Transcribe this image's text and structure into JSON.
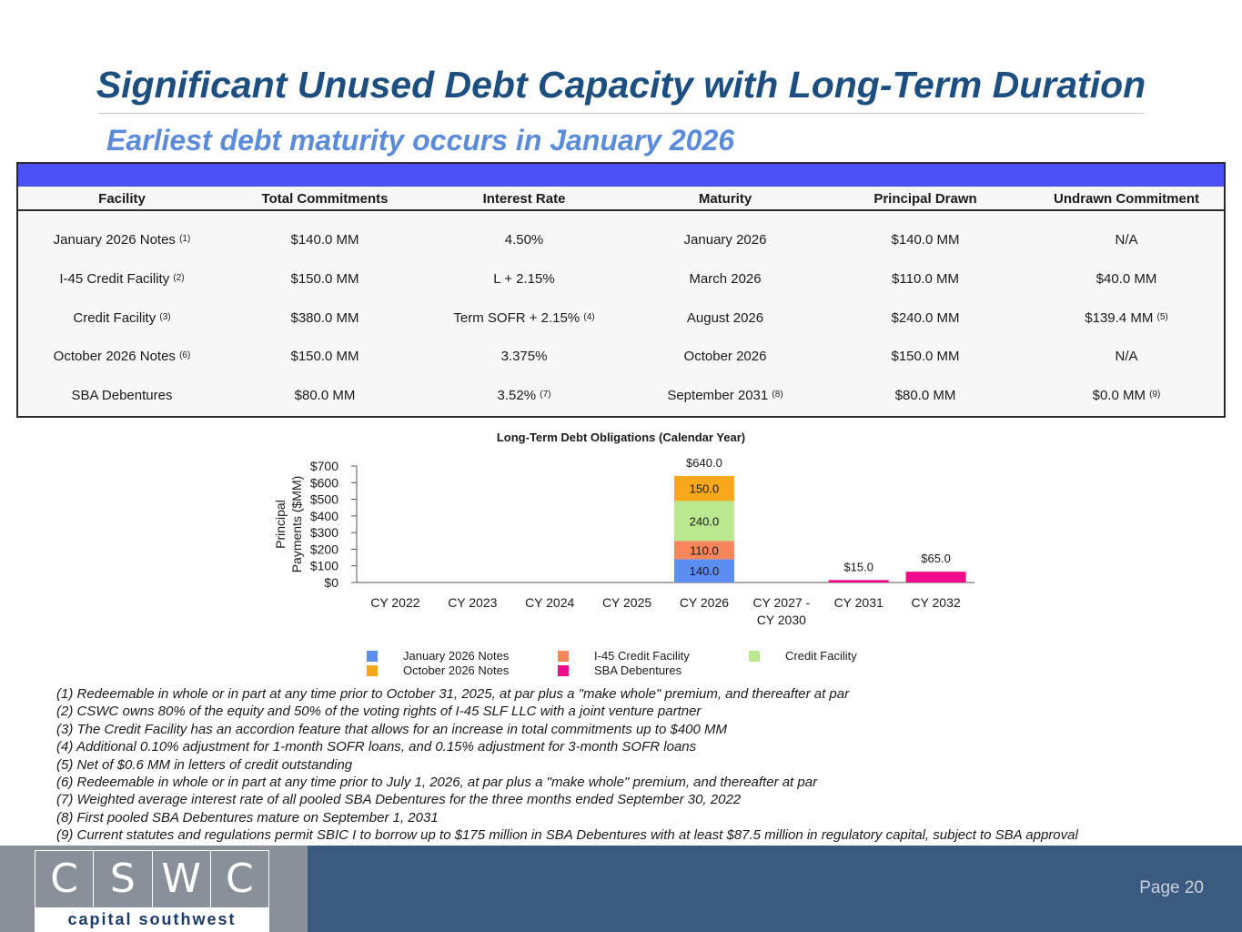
{
  "title": "Significant Unused Debt Capacity with Long-Term Duration",
  "subtitle": "Earliest debt maturity occurs in January 2026",
  "table": {
    "headers": [
      "Facility",
      "Total Commitments",
      "Interest Rate",
      "Maturity",
      "Principal Drawn",
      "Undrawn Commitment"
    ],
    "rows": [
      [
        {
          "t": "January 2026 Notes",
          "s": "(1)"
        },
        {
          "t": "$140.0 MM",
          "s": ""
        },
        {
          "t": "4.50%",
          "s": ""
        },
        {
          "t": "January 2026",
          "s": ""
        },
        {
          "t": "$140.0 MM",
          "s": ""
        },
        {
          "t": "N/A",
          "s": ""
        }
      ],
      [
        {
          "t": "I-45 Credit Facility",
          "s": "(2)"
        },
        {
          "t": "$150.0 MM",
          "s": ""
        },
        {
          "t": "L + 2.15%",
          "s": ""
        },
        {
          "t": "March 2026",
          "s": ""
        },
        {
          "t": "$110.0 MM",
          "s": ""
        },
        {
          "t": "$40.0 MM",
          "s": ""
        }
      ],
      [
        {
          "t": "Credit Facility",
          "s": "(3)"
        },
        {
          "t": "$380.0 MM",
          "s": ""
        },
        {
          "t": "Term SOFR + 2.15%",
          "s": "(4)"
        },
        {
          "t": "August 2026",
          "s": ""
        },
        {
          "t": "$240.0 MM",
          "s": ""
        },
        {
          "t": "$139.4 MM",
          "s": "(5)"
        }
      ],
      [
        {
          "t": "October 2026 Notes",
          "s": "(6)"
        },
        {
          "t": "$150.0 MM",
          "s": ""
        },
        {
          "t": "3.375%",
          "s": ""
        },
        {
          "t": "October 2026",
          "s": ""
        },
        {
          "t": "$150.0 MM",
          "s": ""
        },
        {
          "t": "N/A",
          "s": ""
        }
      ],
      [
        {
          "t": "SBA Debentures",
          "s": ""
        },
        {
          "t": "$80.0 MM",
          "s": ""
        },
        {
          "t": "3.52%",
          "s": "(7)"
        },
        {
          "t": "September 2031",
          "s": "(8)"
        },
        {
          "t": "$80.0 MM",
          "s": ""
        },
        {
          "t": "$0.0 MM",
          "s": "(9)"
        }
      ]
    ]
  },
  "chart_data": {
    "type": "bar",
    "stacked": true,
    "title": "Long-Term Debt Obligations (Calendar Year)",
    "ylabel": "Principal Payments ($MM)",
    "ylabel_lines": [
      "Principal",
      "Payments ($MM)"
    ],
    "ylim": [
      0,
      700
    ],
    "yticks": [
      0,
      100,
      200,
      300,
      400,
      500,
      600,
      700
    ],
    "ytick_labels": [
      "$0",
      "$100",
      "$200",
      "$300",
      "$400",
      "$500",
      "$600",
      "$700"
    ],
    "categories": [
      "CY 2022",
      "CY 2023",
      "CY 2024",
      "CY 2025",
      "CY 2026",
      "CY 2027 - CY 2030",
      "CY 2031",
      "CY 2032"
    ],
    "category_lines": [
      [
        "CY 2022"
      ],
      [
        "CY 2023"
      ],
      [
        "CY 2024"
      ],
      [
        "CY 2025"
      ],
      [
        "CY 2026"
      ],
      [
        "CY 2027 -",
        "CY 2030"
      ],
      [
        "CY 2031"
      ],
      [
        "CY 2032"
      ]
    ],
    "series": [
      {
        "name": "January 2026 Notes",
        "color": "#5b8ef0",
        "values": [
          0,
          0,
          0,
          0,
          140,
          0,
          0,
          0
        ]
      },
      {
        "name": "I-45 Credit Facility",
        "color": "#f7865a",
        "values": [
          0,
          0,
          0,
          0,
          110,
          0,
          0,
          0
        ]
      },
      {
        "name": "Credit Facility",
        "color": "#b9e88f",
        "values": [
          0,
          0,
          0,
          0,
          240,
          0,
          0,
          0
        ]
      },
      {
        "name": "October 2026 Notes",
        "color": "#f9a81c",
        "values": [
          0,
          0,
          0,
          0,
          150,
          0,
          0,
          0
        ]
      },
      {
        "name": "SBA Debentures",
        "color": "#f00a8c",
        "values": [
          0,
          0,
          0,
          0,
          0,
          0,
          15,
          65
        ]
      }
    ],
    "segment_labels": [
      {
        "category": 4,
        "series": 0,
        "text": "140.0"
      },
      {
        "category": 4,
        "series": 1,
        "text": "110.0"
      },
      {
        "category": 4,
        "series": 2,
        "text": "240.0"
      },
      {
        "category": 4,
        "series": 3,
        "text": "150.0"
      }
    ],
    "total_labels": [
      {
        "category": 4,
        "text": "$640.0"
      },
      {
        "category": 6,
        "text": "$15.0"
      },
      {
        "category": 7,
        "text": "$65.0"
      }
    ],
    "legend_position": "bottom",
    "grid": false
  },
  "footnotes": [
    "(1) Redeemable in whole or in part at any time prior to October 31, 2025, at par plus a \"make whole\" premium, and thereafter at par",
    "(2) CSWC owns 80% of the equity and 50% of the voting rights of I-45 SLF LLC with a joint venture partner",
    "(3) The Credit Facility has an accordion feature that allows for an increase in total commitments up to $400 MM",
    "(4) Additional 0.10% adjustment for 1-month SOFR loans, and 0.15% adjustment for 3-month SOFR loans",
    "(5) Net of $0.6 MM in letters of credit outstanding",
    "(6) Redeemable in whole or in part at any time prior to July 1, 2026, at par plus a \"make whole\" premium, and thereafter at par",
    "(7) Weighted average interest rate of all pooled SBA Debentures for the three months ended September 30, 2022",
    "(8) First pooled SBA Debentures mature on September 1, 2031",
    "(9) Current statutes and regulations permit SBIC I to borrow up to $175 million in SBA Debentures with at least $87.5 million in regulatory capital, subject to SBA approval"
  ],
  "footer": {
    "logo_letters": [
      "C",
      "S",
      "W",
      "C"
    ],
    "logo_tagline": "capital southwest",
    "page_label": "Page 20"
  }
}
